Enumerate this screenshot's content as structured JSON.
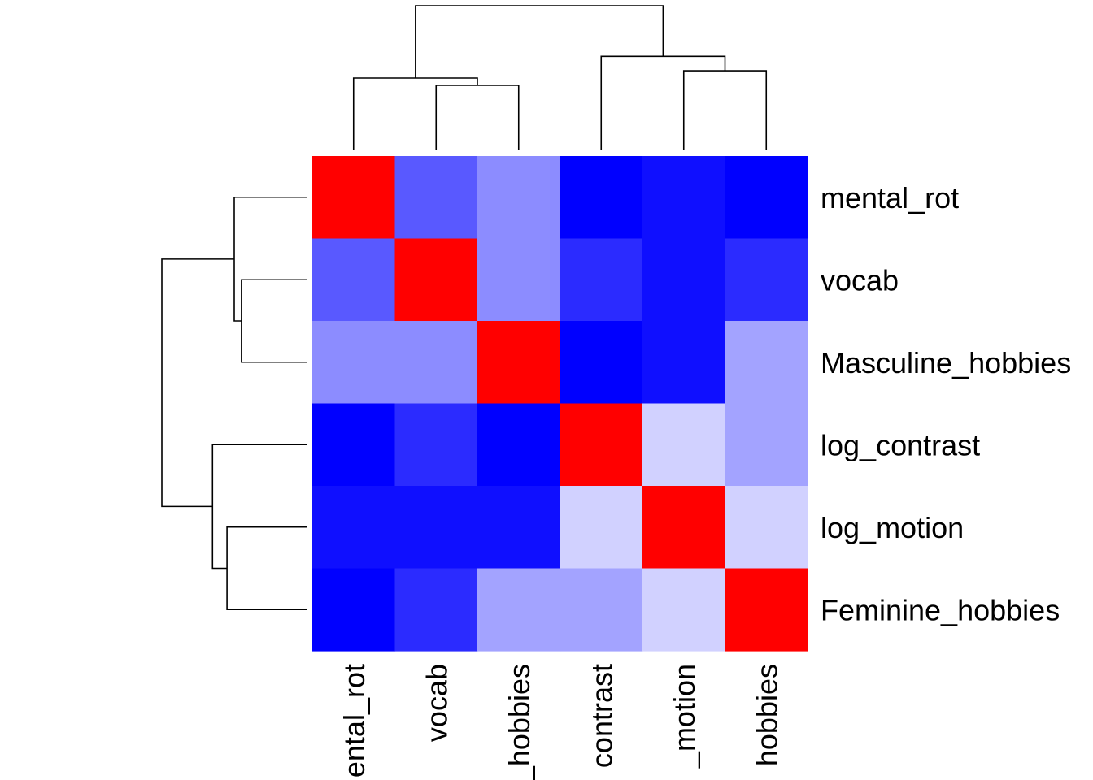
{
  "chart_data": {
    "type": "heatmap",
    "title": "",
    "xlabel": "",
    "ylabel": "",
    "rows": [
      "mental_rot",
      "vocab",
      "Masculine_hobbies",
      "log_contrast",
      "log_motion",
      "Feminine_hobbies"
    ],
    "columns": [
      "mental_rot",
      "vocab",
      "Masculine_hobbies",
      "log_contrast",
      "log_motion",
      "Feminine_hobbies"
    ],
    "column_labels_visible": [
      "ental_rot",
      "vocab",
      "_hobbies",
      "contrast",
      "_motion",
      "hobbies"
    ],
    "values": [
      [
        1.0,
        0.35,
        0.55,
        0.0,
        0.06,
        0.0
      ],
      [
        0.35,
        1.0,
        0.55,
        0.17,
        0.06,
        0.17
      ],
      [
        0.55,
        0.55,
        1.0,
        0.0,
        0.06,
        0.64
      ],
      [
        0.0,
        0.17,
        0.0,
        1.0,
        0.82,
        0.64
      ],
      [
        0.06,
        0.06,
        0.06,
        0.82,
        1.0,
        0.82
      ],
      [
        0.0,
        0.17,
        0.64,
        0.64,
        0.82,
        1.0
      ]
    ],
    "color_low": "#0000ff",
    "color_high": "#ff0000",
    "color_light": "#ffffff",
    "dendrogram": {
      "rows": [
        "mental_rot",
        "vocab",
        "Masculine_hobbies",
        "log_contrast",
        "log_motion",
        "Feminine_hobbies"
      ],
      "merges": [
        {
          "a": 1,
          "b": 2,
          "height": 0.45
        },
        {
          "a": 0,
          "b": 6,
          "height": 0.5
        },
        {
          "a": 4,
          "b": 5,
          "height": 0.55
        },
        {
          "a": 3,
          "b": 8,
          "height": 0.65
        },
        {
          "a": 7,
          "b": 9,
          "height": 1.0
        }
      ]
    }
  }
}
